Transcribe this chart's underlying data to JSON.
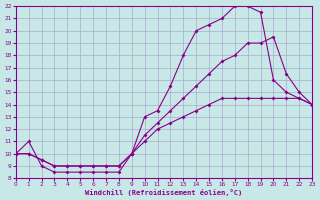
{
  "xlabel": "Windchill (Refroidissement éolien,°C)",
  "bg_color": "#c8e8e8",
  "grid_color": "#aaaacc",
  "line_color": "#880088",
  "xmin": 0,
  "xmax": 23,
  "ymin": 8,
  "ymax": 22,
  "xticks": [
    0,
    1,
    2,
    3,
    4,
    5,
    6,
    7,
    8,
    9,
    10,
    11,
    12,
    13,
    14,
    15,
    16,
    17,
    18,
    19,
    20,
    21,
    22,
    23
  ],
  "yticks": [
    8,
    9,
    10,
    11,
    12,
    13,
    14,
    15,
    16,
    17,
    18,
    19,
    20,
    21,
    22
  ],
  "line1_x": [
    0,
    1,
    2,
    3,
    4,
    5,
    6,
    7,
    8,
    9,
    10,
    11,
    12,
    13,
    14,
    15,
    16,
    17,
    18,
    19,
    20,
    21,
    22,
    23
  ],
  "line1_y": [
    10,
    11,
    9,
    8.5,
    8.5,
    8.5,
    8.5,
    8.5,
    8.5,
    10,
    13,
    13.5,
    15.5,
    18,
    20,
    20.5,
    21,
    22,
    22,
    21.5,
    16,
    15,
    14.5,
    14
  ],
  "line2_x": [
    0,
    1,
    2,
    3,
    4,
    5,
    6,
    7,
    8,
    9,
    10,
    11,
    12,
    13,
    14,
    15,
    16,
    17,
    18,
    19,
    20,
    21,
    22,
    23
  ],
  "line2_y": [
    10,
    10,
    9.5,
    9,
    9,
    9,
    9,
    9,
    9,
    10,
    11,
    12,
    12.5,
    13,
    13.5,
    14,
    14.5,
    14.5,
    14.5,
    14.5,
    14.5,
    14.5,
    14.5,
    14
  ],
  "line3_x": [
    0,
    1,
    2,
    3,
    4,
    5,
    6,
    7,
    8,
    9,
    10,
    11,
    12,
    13,
    14,
    15,
    16,
    17,
    18,
    19,
    20,
    21,
    22,
    23
  ],
  "line3_y": [
    10,
    10,
    9.5,
    9,
    9,
    9,
    9,
    9,
    9,
    10,
    11.5,
    12.5,
    13.5,
    14.5,
    15.5,
    16.5,
    17.5,
    18,
    19,
    19,
    19.5,
    16.5,
    15,
    14
  ]
}
